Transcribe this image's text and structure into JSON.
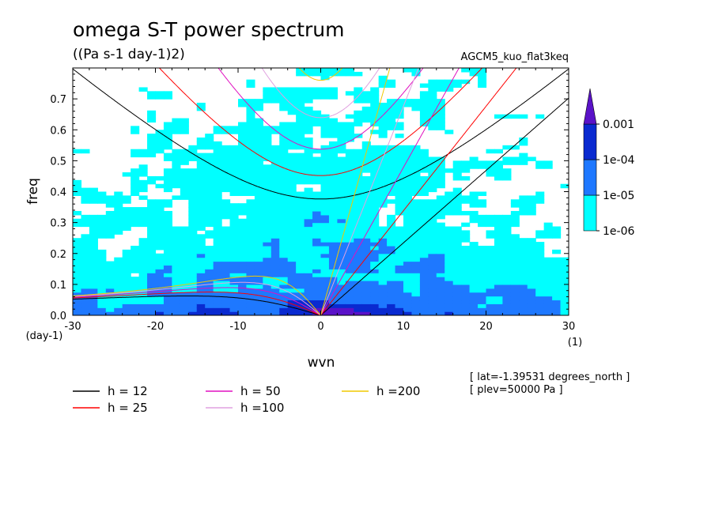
{
  "chart_data": {
    "type": "contour",
    "title": "omega S-T power spectrum",
    "subtitle": "((Pa s-1 day-1)2)",
    "run_name": "AGCM5_kuo_flat3keq",
    "xlabel": "wvn",
    "ylabel": "freq",
    "x_unit": "(1)",
    "y_unit": "(day-1)",
    "xlim": [
      -30,
      30
    ],
    "ylim": [
      0,
      0.8
    ],
    "x_ticks": [
      -30,
      -20,
      -10,
      0,
      10,
      20,
      30
    ],
    "x_tick_labels": [
      "-30",
      "-20",
      "-10",
      "0",
      "10",
      "20",
      "30"
    ],
    "y_ticks": [
      0,
      0.1,
      0.2,
      0.3,
      0.4,
      0.5,
      0.6,
      0.7
    ],
    "y_tick_labels": [
      "0.0",
      "0.1",
      "0.2",
      "0.3",
      "0.4",
      "0.5",
      "0.6",
      "0.7"
    ],
    "colorbar": {
      "levels": [
        "1e-06",
        "1e-05",
        "1e-04",
        "0.001"
      ],
      "colors": [
        "#00ffff",
        "#1e78ff",
        "#0a2ad0",
        "#5a12c8"
      ]
    },
    "dispersion_curves": [
      {
        "label": "h = 12",
        "h": 12,
        "color": "#000000"
      },
      {
        "label": "h = 25",
        "h": 25,
        "color": "#ff0000"
      },
      {
        "label": "h = 50",
        "h": 50,
        "color": "#e010c0"
      },
      {
        "label": "h =100",
        "h": 100,
        "color": "#e0a0e0"
      },
      {
        "label": "h =200",
        "h": 200,
        "color": "#f0c800"
      }
    ],
    "info_lines": [
      "[ lat=-1.39531 degrees_north ]",
      "[ plev=50000 Pa ]"
    ]
  }
}
